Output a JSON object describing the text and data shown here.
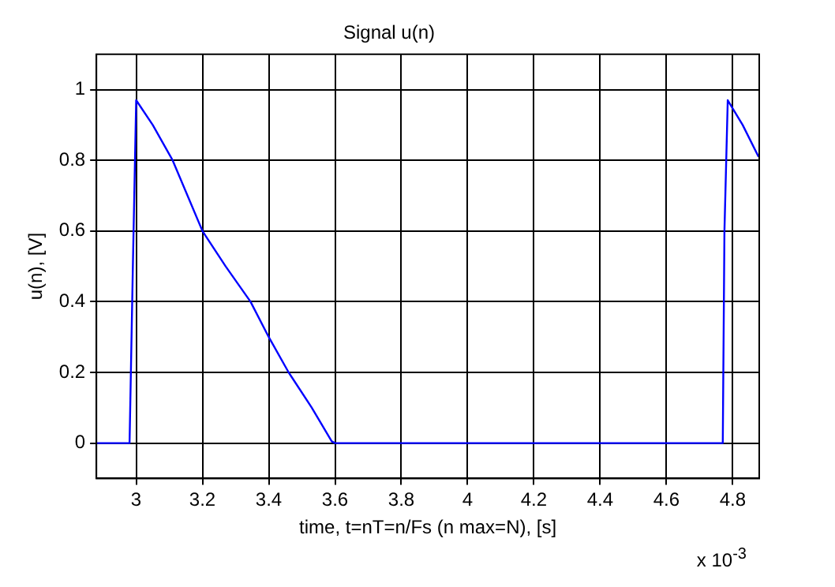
{
  "chart_data": {
    "type": "line",
    "title": "Signal u(n)",
    "xlabel": "time, t=nT=n/Fs (n max=N), [s]",
    "ylabel": "u(n), [V]",
    "annotations": [
      "x 10$^{-3}$"
    ],
    "x": [
      2.88,
      2.98,
      2.99,
      3.0,
      3.05,
      3.11,
      3.2,
      3.27,
      3.345,
      3.4,
      3.46,
      3.53,
      3.59,
      3.6,
      4.0,
      4.5,
      4.77,
      4.775,
      4.785,
      4.83,
      4.878
    ],
    "series": [
      {
        "color": "#0000ff",
        "values": [
          0,
          0,
          0.5,
          0.97,
          0.9,
          0.8,
          0.6,
          0.5,
          0.4,
          0.3,
          0.2,
          0.1,
          0.005,
          0,
          0,
          0,
          0,
          0.6,
          0.97,
          0.9,
          0.81
        ]
      }
    ],
    "xlim": [
      2.88,
      4.88
    ],
    "xticks": [
      3,
      3.2,
      3.4,
      3.6,
      3.8,
      4,
      4.2,
      4.4,
      4.6,
      4.8
    ],
    "ylim": [
      -0.1,
      1.1
    ],
    "yticks": [
      0,
      0.2,
      0.4,
      0.6,
      0.8,
      1
    ],
    "grid": true,
    "legend": false,
    "marker": "none",
    "line_style": "solid"
  }
}
